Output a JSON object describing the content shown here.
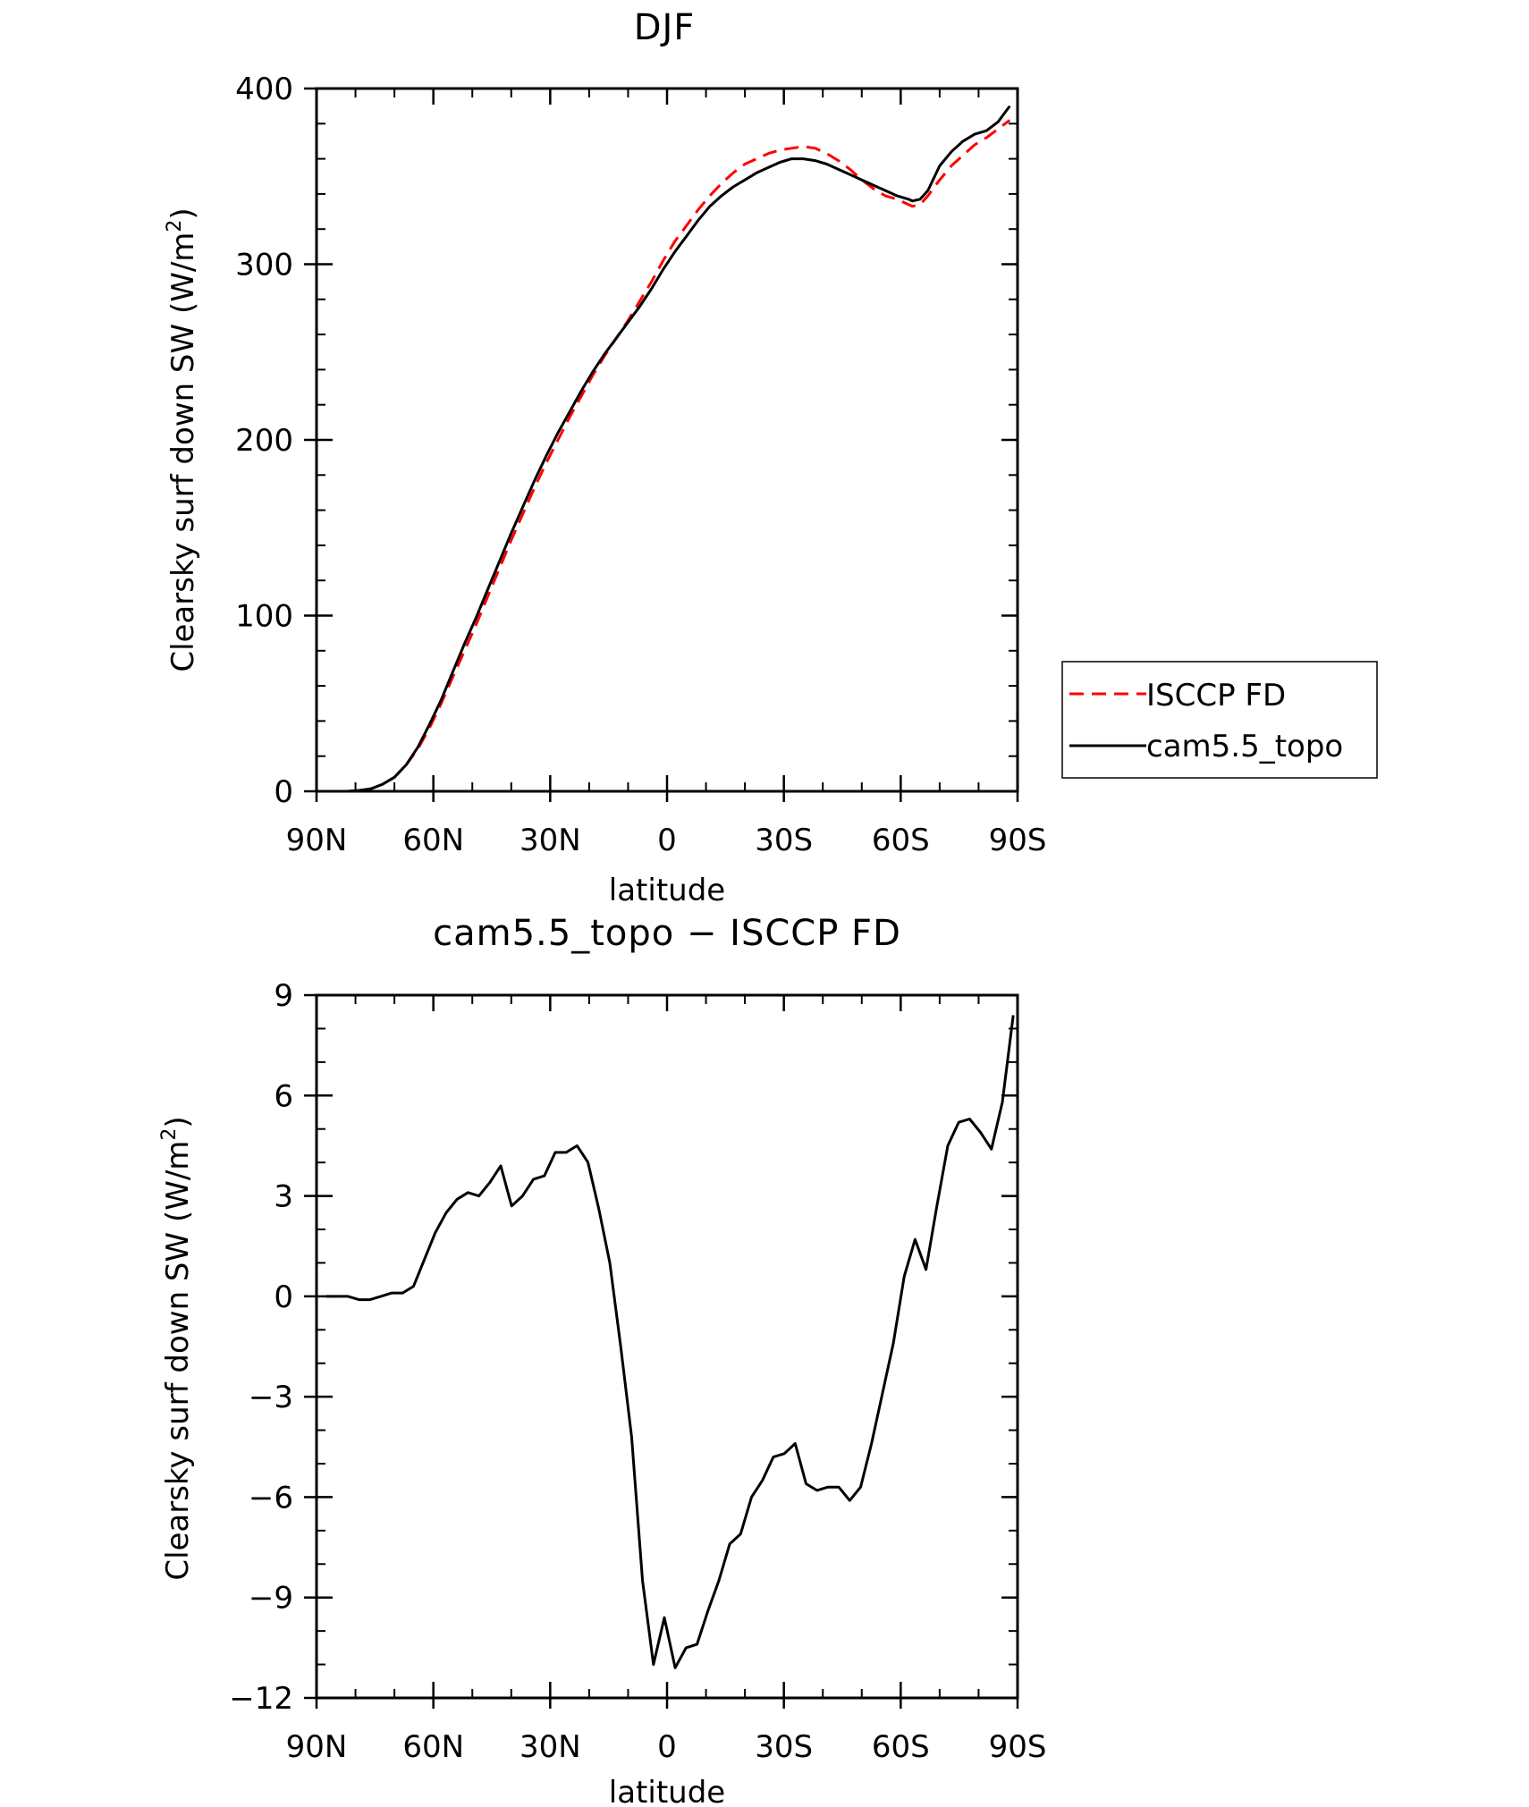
{
  "colors": {
    "obs": "#ff0000",
    "model": "#000000"
  },
  "chart_data": [
    {
      "type": "line",
      "title": "DJF",
      "xlabel": "latitude",
      "ylabel": "Clearsky surf down SW (W/m",
      "ylabel_sup": "2",
      "ylabel_close": ")",
      "xlim": [
        -90,
        90
      ],
      "ylim": [
        0,
        400
      ],
      "xticks": [
        {
          "v": -90,
          "label": "90N"
        },
        {
          "v": -60,
          "label": "60N"
        },
        {
          "v": -30,
          "label": "30N"
        },
        {
          "v": 0,
          "label": "0"
        },
        {
          "v": 30,
          "label": "30S"
        },
        {
          "v": 60,
          "label": "60S"
        },
        {
          "v": 90,
          "label": "90S"
        }
      ],
      "yticks": [
        {
          "v": 0,
          "label": "0"
        },
        {
          "v": 100,
          "label": "100"
        },
        {
          "v": 200,
          "label": "200"
        },
        {
          "v": 300,
          "label": "300"
        },
        {
          "v": 400,
          "label": "400"
        }
      ],
      "legend": {
        "position": "right"
      },
      "series": [
        {
          "name": "ISCCP FD",
          "style": "dashed",
          "x": [
            -88,
            -85,
            -82,
            -79,
            -76,
            -73,
            -70,
            -67,
            -64,
            -61,
            -58,
            -55,
            -52,
            -49,
            -46,
            -43,
            -40,
            -37,
            -34,
            -31,
            -28,
            -25,
            -22,
            -19,
            -16,
            -13,
            -10,
            -7,
            -4,
            -1,
            2,
            5,
            8,
            11,
            14,
            17,
            20,
            23,
            26,
            29,
            32,
            35,
            38,
            41,
            44,
            47,
            50,
            53,
            56,
            59,
            62,
            63,
            65,
            67,
            70,
            73,
            76,
            79,
            82,
            85,
            88
          ],
          "y": [
            0,
            0,
            0,
            0.5,
            1.5,
            4,
            8,
            15,
            24,
            36,
            50,
            65,
            80,
            95,
            111,
            127,
            143,
            158,
            173,
            187,
            200,
            213,
            225,
            237,
            248,
            258,
            268,
            279,
            290,
            302,
            313,
            322,
            331,
            339,
            346,
            352,
            357,
            360,
            363,
            365,
            366,
            367,
            366,
            363,
            359,
            354,
            348,
            343,
            339,
            337,
            334,
            333,
            334,
            339,
            348,
            356,
            362,
            368,
            372,
            377,
            382
          ]
        },
        {
          "name": "cam5.5_topo",
          "style": "solid",
          "x": [
            -88,
            -85,
            -82,
            -79,
            -76,
            -73,
            -70,
            -67,
            -64,
            -61,
            -58,
            -55,
            -52,
            -49,
            -46,
            -43,
            -40,
            -37,
            -34,
            -31,
            -28,
            -25,
            -22,
            -19,
            -16,
            -13,
            -10,
            -7,
            -4,
            -1,
            2,
            5,
            8,
            11,
            14,
            17,
            20,
            23,
            26,
            29,
            32,
            35,
            38,
            41,
            44,
            47,
            50,
            53,
            56,
            59,
            62,
            63,
            65,
            67,
            70,
            73,
            76,
            79,
            82,
            85,
            88
          ],
          "y": [
            0,
            0,
            0,
            0.5,
            1.5,
            4,
            8,
            15,
            25,
            38,
            52,
            68,
            84,
            99,
            115,
            131,
            147,
            162,
            177,
            191,
            204,
            216,
            228,
            239,
            249,
            258,
            267,
            276,
            286,
            297,
            307,
            316,
            325,
            333,
            339,
            344,
            348,
            352,
            355,
            358,
            360,
            360,
            359,
            357,
            354,
            351,
            348,
            345,
            342,
            339,
            337,
            336,
            337,
            342,
            356,
            364,
            370,
            374,
            376,
            381,
            390
          ]
        }
      ]
    },
    {
      "type": "line",
      "title": "cam5.5_topo − ISCCP FD",
      "xlabel": "latitude",
      "ylabel": "Clearsky surf down SW (W/m",
      "ylabel_sup": "2",
      "ylabel_close": ")",
      "xlim": [
        -90,
        90
      ],
      "ylim": [
        -12,
        9
      ],
      "xticks": [
        {
          "v": -90,
          "label": "90N"
        },
        {
          "v": -60,
          "label": "60N"
        },
        {
          "v": -30,
          "label": "30N"
        },
        {
          "v": 0,
          "label": "0"
        },
        {
          "v": 30,
          "label": "30S"
        },
        {
          "v": 60,
          "label": "60S"
        },
        {
          "v": 90,
          "label": "90S"
        }
      ],
      "yticks": [
        {
          "v": -12,
          "label": "−12"
        },
        {
          "v": -9,
          "label": "−9"
        },
        {
          "v": -6,
          "label": "−6"
        },
        {
          "v": -3,
          "label": "−3"
        },
        {
          "v": 0,
          "label": "0"
        },
        {
          "v": 3,
          "label": "3"
        },
        {
          "v": 6,
          "label": "6"
        },
        {
          "v": 9,
          "label": "9"
        }
      ],
      "series": [
        {
          "style": "solid",
          "x": [
            -87.5,
            -84.7,
            -81.9,
            -79.1,
            -76.3,
            -73.5,
            -70.7,
            -67.9,
            -65.1,
            -62.3,
            -59.5,
            -56.7,
            -53.9,
            -51.1,
            -48.3,
            -45.5,
            -42.7,
            -39.9,
            -37.1,
            -34.3,
            -31.5,
            -28.7,
            -25.9,
            -23.1,
            -20.3,
            -17.5,
            -14.7,
            -11.9,
            -9.1,
            -6.3,
            -3.5,
            -0.7,
            2.1,
            4.9,
            7.7,
            10.5,
            13.3,
            16.1,
            18.9,
            21.7,
            24.5,
            27.3,
            30.1,
            32.9,
            35.7,
            38.5,
            41.3,
            44.1,
            46.9,
            49.7,
            52.5,
            55.3,
            58.1,
            60.9,
            63.7,
            66.5,
            69.3,
            72.1,
            74.9,
            77.7,
            80.5,
            83.3,
            86.1,
            88.9
          ],
          "y": [
            0,
            0,
            0,
            -0.1,
            -0.1,
            0,
            0.1,
            0.1,
            0.3,
            1.1,
            1.9,
            2.5,
            2.9,
            3.1,
            3.0,
            3.4,
            3.9,
            2.7,
            3.0,
            3.5,
            3.6,
            4.3,
            4.3,
            4.5,
            4.0,
            2.6,
            1.0,
            -1.5,
            -4.2,
            -8.5,
            -11.0,
            -9.6,
            -11.1,
            -10.5,
            -10.4,
            -9.4,
            -8.5,
            -7.4,
            -7.1,
            -6.0,
            -5.5,
            -4.8,
            -4.7,
            -4.4,
            -5.6,
            -5.8,
            -5.7,
            -5.7,
            -6.1,
            -5.7,
            -4.4,
            -2.9,
            -1.4,
            0.6,
            1.7,
            0.8,
            2.7,
            4.5,
            5.2,
            5.3,
            4.9,
            4.4,
            5.8,
            8.4
          ]
        }
      ]
    }
  ]
}
